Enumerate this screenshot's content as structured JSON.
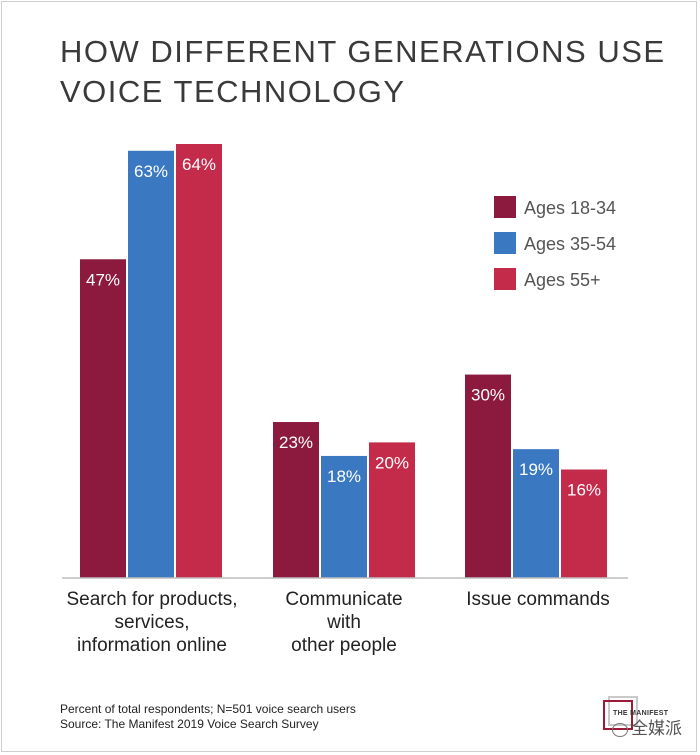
{
  "title": "HOW DIFFERENT GENERATIONS USE VOICE TECHNOLOGY",
  "footnote": {
    "line1": "Percent of total respondents; N=501 voice search users",
    "line2": "Source: The Manifest 2019 Voice Search Survey"
  },
  "logo": {
    "text": "THE MANIFEST"
  },
  "watermark": {
    "text": "全媒派"
  },
  "chart_data": {
    "type": "bar",
    "title": "HOW DIFFERENT GENERATIONS USE VOICE TECHNOLOGY",
    "categories": [
      [
        "Search for products,",
        "services,",
        "information online"
      ],
      [
        "Communicate",
        "with",
        "other people"
      ],
      [
        "Issue commands"
      ]
    ],
    "series": [
      {
        "name": "Ages 18-34",
        "color": "#8c1a3f",
        "values": [
          47,
          23,
          30
        ]
      },
      {
        "name": "Ages 35-54",
        "color": "#3a78c2",
        "values": [
          63,
          18,
          19
        ]
      },
      {
        "name": "Ages 55+",
        "color": "#c42b4b",
        "values": [
          64,
          20,
          16
        ]
      }
    ],
    "value_suffix": "%",
    "ylim": [
      0,
      64
    ],
    "grid": false,
    "legend": "top-right",
    "xlabel": "",
    "ylabel": ""
  }
}
